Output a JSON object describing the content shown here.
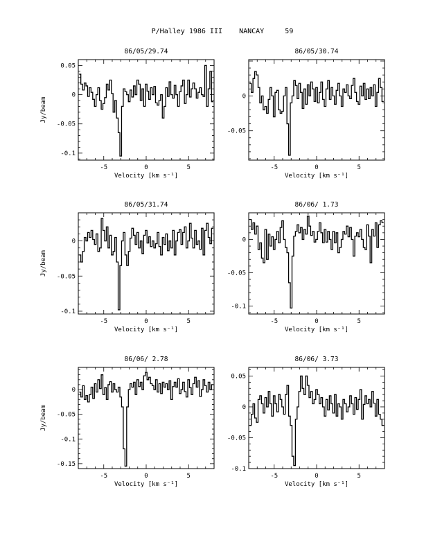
{
  "figure_title": "P/Halley 1986 III    NANCAY     59",
  "chart_data": [
    {
      "type": "line",
      "step": true,
      "title": "86/05/29.74",
      "xlabel": "Velocity [km s⁻¹]",
      "ylabel": "Jy/beam",
      "xlim": [
        -8,
        8
      ],
      "ylim": [
        -0.112,
        0.06
      ],
      "xticks": [
        -5,
        0,
        5
      ],
      "xtick_labels": [
        "-5",
        "0",
        "5"
      ],
      "yticks": [
        0.05,
        0,
        -0.05,
        -0.1
      ],
      "ytick_labels": [
        "0.05",
        "0",
        "-0.05",
        "-0.1"
      ],
      "x": [
        -7.8,
        -7.6,
        -7.4,
        -7.2,
        -7.0,
        -6.8,
        -6.6,
        -6.4,
        -6.2,
        -6.0,
        -5.8,
        -5.6,
        -5.4,
        -5.2,
        -5.0,
        -4.8,
        -4.6,
        -4.4,
        -4.2,
        -4.0,
        -3.8,
        -3.6,
        -3.4,
        -3.2,
        -3.0,
        -2.8,
        -2.6,
        -2.4,
        -2.2,
        -2.0,
        -1.8,
        -1.6,
        -1.4,
        -1.2,
        -1.0,
        -0.8,
        -0.6,
        -0.4,
        -0.2,
        0.0,
        0.2,
        0.4,
        0.6,
        0.8,
        1.0,
        1.2,
        1.4,
        1.6,
        1.8,
        2.0,
        2.2,
        2.4,
        2.6,
        2.8,
        3.0,
        3.2,
        3.4,
        3.6,
        3.8,
        4.0,
        4.2,
        4.4,
        4.6,
        4.8,
        5.0,
        5.2,
        5.4,
        5.6,
        5.8,
        6.0,
        6.2,
        6.4,
        6.6,
        6.8,
        7.0,
        7.2,
        7.4,
        7.6,
        7.8
      ],
      "y": [
        0.035,
        0.018,
        0.008,
        0.02,
        0.015,
        -0.003,
        0.012,
        0.004,
        -0.008,
        -0.02,
        0.0,
        0.012,
        -0.01,
        -0.025,
        -0.015,
        -0.005,
        0.018,
        0.008,
        0.025,
        0.002,
        -0.03,
        -0.01,
        -0.04,
        -0.065,
        -0.105,
        -0.02,
        0.01,
        0.005,
        0.0,
        -0.012,
        0.008,
        -0.004,
        0.015,
        0.0,
        0.025,
        0.018,
        -0.01,
        0.01,
        -0.02,
        0.018,
        0.006,
        -0.008,
        0.012,
        0.0,
        0.014,
        -0.014,
        -0.018,
        -0.01,
        0.0,
        -0.04,
        -0.02,
        0.012,
        -0.003,
        0.022,
        0.0,
        -0.006,
        0.016,
        0.0,
        -0.02,
        0.005,
        0.015,
        0.025,
        -0.015,
        0.0,
        0.025,
        -0.004,
        0.01,
        0.02,
        0.01,
        -0.006,
        0.004,
        0.012,
        0.0,
        -0.003,
        0.05,
        -0.02,
        0.01,
        0.04,
        -0.012
      ]
    },
    {
      "type": "line",
      "step": true,
      "title": "86/05/30.74",
      "xlabel": "Velocity [km s⁻¹]",
      "ylabel": "",
      "xlim": [
        -8,
        8
      ],
      "ylim": [
        -0.092,
        0.052
      ],
      "xticks": [
        -5,
        0,
        5
      ],
      "xtick_labels": [
        "-5",
        "0",
        "5"
      ],
      "yticks": [
        0,
        -0.05
      ],
      "ytick_labels": [
        "0",
        "-0.05"
      ],
      "x": [
        -7.8,
        -7.6,
        -7.4,
        -7.2,
        -7.0,
        -6.8,
        -6.6,
        -6.4,
        -6.2,
        -6.0,
        -5.8,
        -5.6,
        -5.4,
        -5.2,
        -5.0,
        -4.8,
        -4.6,
        -4.4,
        -4.2,
        -4.0,
        -3.8,
        -3.6,
        -3.4,
        -3.2,
        -3.0,
        -2.8,
        -2.6,
        -2.4,
        -2.2,
        -2.0,
        -1.8,
        -1.6,
        -1.4,
        -1.2,
        -1.0,
        -0.8,
        -0.6,
        -0.4,
        -0.2,
        0.0,
        0.2,
        0.4,
        0.6,
        0.8,
        1.0,
        1.2,
        1.4,
        1.6,
        1.8,
        2.0,
        2.2,
        2.4,
        2.6,
        2.8,
        3.0,
        3.2,
        3.4,
        3.6,
        3.8,
        4.0,
        4.2,
        4.4,
        4.6,
        4.8,
        5.0,
        5.2,
        5.4,
        5.6,
        5.8,
        6.0,
        6.2,
        6.4,
        6.6,
        6.8,
        7.0,
        7.2,
        7.4,
        7.6,
        7.8
      ],
      "y": [
        0.018,
        0.005,
        0.025,
        0.035,
        0.03,
        0.012,
        -0.01,
        0.0,
        -0.02,
        -0.015,
        -0.025,
        -0.005,
        0.012,
        0.0,
        -0.03,
        0.005,
        0.008,
        -0.02,
        -0.025,
        -0.022,
        0.0,
        0.012,
        -0.04,
        -0.085,
        -0.01,
        0.0,
        0.022,
        0.015,
        -0.004,
        0.018,
        0.005,
        -0.018,
        0.01,
        -0.012,
        0.016,
        0.0,
        0.02,
        0.01,
        -0.008,
        0.012,
        -0.01,
        0.005,
        0.02,
        -0.005,
        -0.015,
        0.01,
        0.022,
        -0.005,
        0.012,
        0.0,
        -0.012,
        0.008,
        0.018,
        0.0,
        -0.015,
        0.01,
        0.005,
        0.016,
        0.0,
        -0.004,
        0.015,
        0.025,
        0.005,
        -0.008,
        -0.012,
        0.014,
        0.0,
        0.018,
        -0.005,
        0.01,
        -0.004,
        0.012,
        0.0,
        0.016,
        -0.015,
        0.005,
        0.025,
        0.012,
        -0.008
      ]
    },
    {
      "type": "line",
      "step": true,
      "title": "86/05/31.74",
      "xlabel": "Velocity [km s⁻¹]",
      "ylabel": "Jy/beam",
      "xlim": [
        -8,
        8
      ],
      "ylim": [
        -0.104,
        0.04
      ],
      "xticks": [
        -5,
        0,
        5
      ],
      "xtick_labels": [
        "-5",
        "0",
        "5"
      ],
      "yticks": [
        0,
        -0.05,
        -0.1
      ],
      "ytick_labels": [
        "0",
        "-0.05",
        "-0.1"
      ],
      "x": [
        -7.8,
        -7.6,
        -7.4,
        -7.2,
        -7.0,
        -6.8,
        -6.6,
        -6.4,
        -6.2,
        -6.0,
        -5.8,
        -5.6,
        -5.4,
        -5.2,
        -5.0,
        -4.8,
        -4.6,
        -4.4,
        -4.2,
        -4.0,
        -3.8,
        -3.6,
        -3.4,
        -3.2,
        -3.0,
        -2.8,
        -2.6,
        -2.4,
        -2.2,
        -2.0,
        -1.8,
        -1.6,
        -1.4,
        -1.2,
        -1.0,
        -0.8,
        -0.6,
        -0.4,
        -0.2,
        0.0,
        0.2,
        0.4,
        0.6,
        0.8,
        1.0,
        1.2,
        1.4,
        1.6,
        1.8,
        2.0,
        2.2,
        2.4,
        2.6,
        2.8,
        3.0,
        3.2,
        3.4,
        3.6,
        3.8,
        4.0,
        4.2,
        4.4,
        4.6,
        4.8,
        5.0,
        5.2,
        5.4,
        5.6,
        5.8,
        6.0,
        6.2,
        6.4,
        6.6,
        6.8,
        7.0,
        7.2,
        7.4,
        7.6,
        7.8
      ],
      "y": [
        -0.02,
        -0.03,
        -0.015,
        0.005,
        0.0,
        0.012,
        0.005,
        0.015,
        0.002,
        -0.005,
        0.01,
        -0.015,
        -0.01,
        0.032,
        0.015,
        0.0,
        0.02,
        -0.01,
        0.008,
        -0.02,
        -0.015,
        0.005,
        -0.03,
        -0.098,
        -0.035,
        0.0,
        0.012,
        -0.02,
        -0.035,
        -0.015,
        0.004,
        0.018,
        0.008,
        -0.005,
        0.012,
        -0.01,
        0.0,
        -0.018,
        0.008,
        0.015,
        -0.003,
        0.006,
        -0.008,
        0.0,
        -0.01,
        -0.004,
        0.012,
        -0.008,
        -0.02,
        0.005,
        -0.005,
        0.01,
        -0.014,
        0.0,
        -0.01,
        0.015,
        -0.02,
        0.0,
        0.012,
        0.016,
        -0.005,
        0.012,
        0.02,
        -0.01,
        0.0,
        0.025,
        0.004,
        -0.01,
        0.015,
        -0.005,
        0.0,
        -0.012,
        0.018,
        -0.02,
        0.015,
        0.025,
        0.005,
        -0.004,
        0.018
      ]
    },
    {
      "type": "line",
      "step": true,
      "title": "86/06/ 1.73",
      "xlabel": "Velocity [km s⁻¹]",
      "ylabel": "",
      "xlim": [
        -8,
        8
      ],
      "ylim": [
        -0.112,
        0.04
      ],
      "xticks": [
        -5,
        0,
        5
      ],
      "xtick_labels": [
        "-5",
        "0",
        "5"
      ],
      "yticks": [
        0,
        -0.05,
        -0.1
      ],
      "ytick_labels": [
        "0",
        "-0.05",
        "-0.1"
      ],
      "x": [
        -7.8,
        -7.6,
        -7.4,
        -7.2,
        -7.0,
        -6.8,
        -6.6,
        -6.4,
        -6.2,
        -6.0,
        -5.8,
        -5.6,
        -5.4,
        -5.2,
        -5.0,
        -4.8,
        -4.6,
        -4.4,
        -4.2,
        -4.0,
        -3.8,
        -3.6,
        -3.4,
        -3.2,
        -3.0,
        -2.8,
        -2.6,
        -2.4,
        -2.2,
        -2.0,
        -1.8,
        -1.6,
        -1.4,
        -1.2,
        -1.0,
        -0.8,
        -0.6,
        -0.4,
        -0.2,
        0.0,
        0.2,
        0.4,
        0.6,
        0.8,
        1.0,
        1.2,
        1.4,
        1.6,
        1.8,
        2.0,
        2.2,
        2.4,
        2.6,
        2.8,
        3.0,
        3.2,
        3.4,
        3.6,
        3.8,
        4.0,
        4.2,
        4.4,
        4.6,
        4.8,
        5.0,
        5.2,
        5.4,
        5.6,
        5.8,
        6.0,
        6.2,
        6.4,
        6.6,
        6.8,
        7.0,
        7.2,
        7.4,
        7.6,
        7.8
      ],
      "y": [
        0.03,
        0.015,
        0.025,
        0.008,
        0.02,
        -0.015,
        -0.005,
        -0.028,
        -0.035,
        0.015,
        -0.03,
        0.008,
        -0.01,
        0.004,
        -0.015,
        0.0,
        0.012,
        -0.005,
        0.018,
        0.028,
        0.0,
        -0.012,
        -0.02,
        -0.065,
        -0.103,
        -0.025,
        0.005,
        0.012,
        0.022,
        0.01,
        0.018,
        0.0,
        0.015,
        0.008,
        0.035,
        0.02,
        0.006,
        0.012,
        -0.004,
        0.0,
        0.012,
        0.025,
        0.01,
        -0.005,
        0.015,
        -0.004,
        0.012,
        0.0,
        -0.015,
        0.012,
        -0.005,
        0.01,
        -0.02,
        -0.012,
        0.0,
        0.012,
        0.008,
        0.02,
        0.004,
        0.018,
        0.0,
        -0.025,
        0.005,
        0.01,
        0.004,
        0.015,
        0.0,
        -0.012,
        -0.015,
        0.022,
        0.005,
        -0.035,
        0.015,
        0.005,
        0.025,
        -0.012,
        0.022,
        0.028,
        0.025
      ]
    },
    {
      "type": "line",
      "step": true,
      "title": "86/06/ 2.78",
      "xlabel": "Velocity [km s⁻¹]",
      "ylabel": "Jy/beam",
      "xlim": [
        -8,
        8
      ],
      "ylim": [
        -0.16,
        0.045
      ],
      "xticks": [
        -5,
        0,
        5
      ],
      "xtick_labels": [
        "-5",
        "0",
        "5"
      ],
      "yticks": [
        0,
        -0.05,
        -0.1,
        -0.15
      ],
      "ytick_labels": [
        "0",
        "-0.05",
        "-0.1",
        "-0.15"
      ],
      "x": [
        -7.8,
        -7.6,
        -7.4,
        -7.2,
        -7.0,
        -6.8,
        -6.6,
        -6.4,
        -6.2,
        -6.0,
        -5.8,
        -5.6,
        -5.4,
        -5.2,
        -5.0,
        -4.8,
        -4.6,
        -4.4,
        -4.2,
        -4.0,
        -3.8,
        -3.6,
        -3.4,
        -3.2,
        -3.0,
        -2.8,
        -2.6,
        -2.4,
        -2.2,
        -2.0,
        -1.8,
        -1.6,
        -1.4,
        -1.2,
        -1.0,
        -0.8,
        -0.6,
        -0.4,
        -0.2,
        0.0,
        0.2,
        0.4,
        0.6,
        0.8,
        1.0,
        1.2,
        1.4,
        1.6,
        1.8,
        2.0,
        2.2,
        2.4,
        2.6,
        2.8,
        3.0,
        3.2,
        3.4,
        3.6,
        3.8,
        4.0,
        4.2,
        4.4,
        4.6,
        4.8,
        5.0,
        5.2,
        5.4,
        5.6,
        5.8,
        6.0,
        6.2,
        6.4,
        6.6,
        6.8,
        7.0,
        7.2,
        7.4,
        7.6,
        7.8
      ],
      "y": [
        -0.005,
        -0.015,
        0.008,
        -0.02,
        -0.012,
        -0.025,
        -0.01,
        0.005,
        -0.018,
        0.012,
        -0.005,
        0.02,
        0.002,
        0.03,
        -0.01,
        0.004,
        -0.02,
        0.01,
        0.016,
        -0.005,
        0.012,
        0.0,
        -0.005,
        0.005,
        -0.015,
        -0.035,
        -0.12,
        -0.155,
        -0.035,
        0.0,
        0.012,
        0.005,
        0.015,
        -0.01,
        0.02,
        0.006,
        0.015,
        0.0,
        0.028,
        0.035,
        0.02,
        0.025,
        0.012,
        0.008,
        0.0,
        0.02,
        -0.005,
        0.012,
        -0.008,
        0.015,
        0.005,
        0.012,
        0.0,
        0.018,
        -0.02,
        0.006,
        0.015,
        0.005,
        0.022,
        -0.008,
        0.0,
        0.015,
        -0.004,
        -0.015,
        0.02,
        0.004,
        -0.01,
        0.012,
        0.025,
        0.005,
        0.018,
        -0.014,
        0.0,
        0.02,
        0.008,
        -0.005,
        0.015,
        0.0,
        0.01
      ]
    },
    {
      "type": "line",
      "step": true,
      "title": "86/06/ 3.73",
      "xlabel": "Velocity [km s⁻¹]",
      "ylabel": "",
      "xlim": [
        -8,
        8
      ],
      "ylim": [
        -0.1,
        0.064
      ],
      "xticks": [
        -5,
        0,
        5
      ],
      "xtick_labels": [
        "-5",
        "0",
        "5"
      ],
      "yticks": [
        0.05,
        0,
        -0.05,
        -0.1
      ],
      "ytick_labels": [
        "0.05",
        "0",
        "-0.05",
        "-0.1"
      ],
      "x": [
        -7.8,
        -7.6,
        -7.4,
        -7.2,
        -7.0,
        -6.8,
        -6.6,
        -6.4,
        -6.2,
        -6.0,
        -5.8,
        -5.6,
        -5.4,
        -5.2,
        -5.0,
        -4.8,
        -4.6,
        -4.4,
        -4.2,
        -4.0,
        -3.8,
        -3.6,
        -3.4,
        -3.2,
        -3.0,
        -2.8,
        -2.6,
        -2.4,
        -2.2,
        -2.0,
        -1.8,
        -1.6,
        -1.4,
        -1.2,
        -1.0,
        -0.8,
        -0.6,
        -0.4,
        -0.2,
        0.0,
        0.2,
        0.4,
        0.6,
        0.8,
        1.0,
        1.2,
        1.4,
        1.6,
        1.8,
        2.0,
        2.2,
        2.4,
        2.6,
        2.8,
        3.0,
        3.2,
        3.4,
        3.6,
        3.8,
        4.0,
        4.2,
        4.4,
        4.6,
        4.8,
        5.0,
        5.2,
        5.4,
        5.6,
        5.8,
        6.0,
        6.2,
        6.4,
        6.6,
        6.8,
        7.0,
        7.2,
        7.4,
        7.6,
        7.8
      ],
      "y": [
        -0.03,
        -0.012,
        0.005,
        -0.018,
        -0.025,
        0.012,
        0.018,
        0.005,
        -0.01,
        0.015,
        0.0,
        0.025,
        0.005,
        -0.015,
        0.018,
        0.005,
        -0.008,
        0.02,
        0.012,
        0.0,
        -0.012,
        0.02,
        0.035,
        -0.015,
        -0.03,
        -0.08,
        -0.095,
        -0.02,
        0.0,
        0.025,
        0.05,
        0.03,
        0.02,
        0.05,
        0.035,
        0.015,
        0.025,
        0.005,
        0.012,
        0.028,
        0.02,
        0.005,
        0.015,
        0.0,
        -0.015,
        0.012,
        -0.005,
        0.018,
        0.005,
        -0.01,
        0.02,
        -0.015,
        0.005,
        0.0,
        -0.02,
        0.012,
        0.005,
        -0.008,
        0.0,
        0.018,
        0.005,
        -0.012,
        0.015,
        -0.004,
        0.012,
        0.028,
        -0.02,
        0.004,
        0.018,
        0.005,
        0.012,
        0.0,
        0.025,
        0.006,
        -0.015,
        0.012,
        -0.012,
        -0.02,
        -0.03
      ]
    }
  ]
}
